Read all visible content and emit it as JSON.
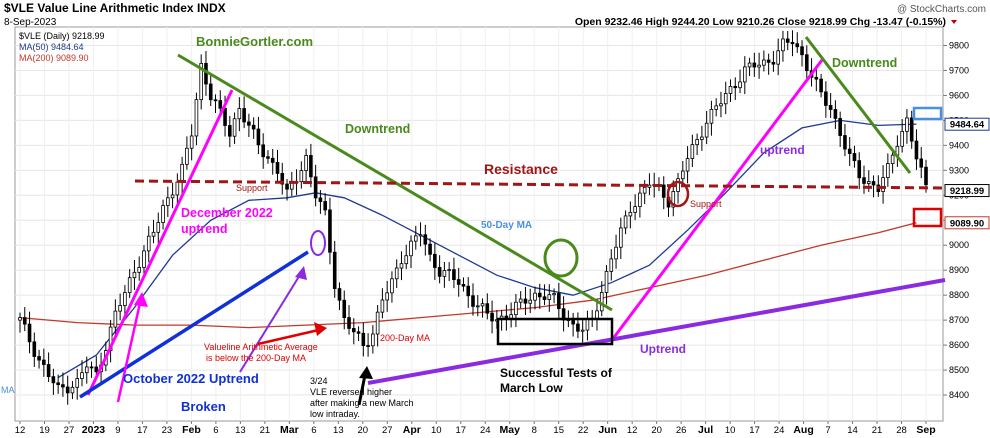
{
  "header": {
    "symbol_line": "$VLE Value Line Arithmetic Index INDX",
    "date_line": "8-Sep-2023",
    "brand": "@ StockCharts.com",
    "ohlc": "Open 9232.46  High 9244.20  Low 9210.26  Close 9218.99  Chg -13.47 (-0.15%)",
    "legend_price": "$VLE (Daily) 9218.99",
    "legend_ma50": "MA(50) 9484.64",
    "legend_ma200": "MA(200) 9089.90"
  },
  "colors": {
    "candle": "#000000",
    "ma50": "#1f3a93",
    "ma200": "#c0392b",
    "downtrend": "#4a8a1c",
    "uptrend_magenta": "#ff00ff",
    "uptrend_purple": "#8a2be2",
    "blue_line": "#1030d8",
    "resistance": "#a01515",
    "red_note": "#e00000",
    "purple_note": "#8a2be2"
  },
  "annotations": {
    "bonniegortler": "BonnieGortler.com",
    "downtrend_mid": "Downtrend",
    "downtrend_right": "Downtrend",
    "resistance": "Resistance",
    "support_left": "Support",
    "support_right": "Support",
    "dec_uptrend_1": "December 2022",
    "dec_uptrend_2": "uptrend",
    "ma50_label": "50-Day MA",
    "uptrend_mid": "uptrend",
    "vle_below_1": "Valueline Arithmetic Average",
    "vle_below_2": "is below the 200-Day MA",
    "ma200_label": "200-Day MA",
    "oct_uptrend": "October 2022 Uptrend",
    "broken": "Broken",
    "note_date": "3/24",
    "note_1": "VLE reversed higher",
    "note_2": "after making a new March",
    "note_3": "low intraday.",
    "successful_1": "Successful Tests of",
    "successful_2": "March Low",
    "uptrend_bottom": "Uptrend",
    "edge_ma": "MA"
  },
  "chart_data": {
    "type": "candlestick",
    "title": "$VLE Value Line Arithmetic Index INDX",
    "ylim": [
      8300,
      9850
    ],
    "y_ticks": [
      8400,
      8500,
      8600,
      8700,
      8800,
      8900,
      9000,
      9100,
      9200,
      9300,
      9400,
      9500,
      9600,
      9700,
      9800
    ],
    "y_tick_labels": [
      "8400",
      "8500",
      "8600",
      "8700",
      "8800",
      "8900",
      "9000",
      "9100",
      "9200",
      "9300",
      "9400",
      "9500",
      "9600",
      "9700",
      "9800"
    ],
    "price_flags": {
      "close": "9218.99",
      "ma50": "9484.64",
      "ma200": "9089.90"
    },
    "x_tick_labels": [
      "12",
      "19",
      "27",
      "2023",
      "9",
      "17",
      "23",
      "Feb",
      "6",
      "13",
      "21",
      "Mar",
      "6",
      "13",
      "20",
      "27",
      "Apr",
      "10",
      "17",
      "24",
      "May",
      "8",
      "15",
      "22",
      "Jun",
      "12",
      "20",
      "26",
      "Jul",
      "10",
      "17",
      "24",
      "Aug",
      "7",
      "14",
      "21",
      "28",
      "Sep"
    ],
    "x_tick_bold": [
      false,
      false,
      false,
      true,
      false,
      false,
      false,
      true,
      false,
      false,
      false,
      true,
      false,
      false,
      false,
      false,
      true,
      false,
      false,
      false,
      true,
      false,
      false,
      false,
      true,
      false,
      false,
      false,
      true,
      false,
      false,
      false,
      true,
      false,
      false,
      false,
      false,
      true
    ],
    "price_path": [
      [
        0,
        8700
      ],
      [
        2,
        8540
      ],
      [
        4,
        8420
      ],
      [
        6,
        8450
      ],
      [
        7,
        8520
      ],
      [
        8,
        8480
      ],
      [
        9,
        8600
      ],
      [
        10,
        8720
      ],
      [
        12,
        8900
      ],
      [
        14,
        9050
      ],
      [
        15,
        9150
      ],
      [
        17,
        9300
      ],
      [
        18,
        9450
      ],
      [
        19,
        9720
      ],
      [
        20,
        9600
      ],
      [
        22,
        9450
      ],
      [
        23,
        9550
      ],
      [
        25,
        9400
      ],
      [
        27,
        9300
      ],
      [
        28,
        9200
      ],
      [
        30,
        9350
      ],
      [
        31,
        9200
      ],
      [
        32,
        9120
      ],
      [
        33,
        8850
      ],
      [
        34,
        8700
      ],
      [
        35,
        8650
      ],
      [
        36,
        8600
      ],
      [
        37,
        8650
      ],
      [
        38,
        8780
      ],
      [
        39,
        8850
      ],
      [
        40,
        8950
      ],
      [
        41,
        9000
      ],
      [
        42,
        9050
      ],
      [
        43,
        8950
      ],
      [
        44,
        8900
      ],
      [
        45,
        8880
      ],
      [
        46,
        8850
      ],
      [
        47,
        8800
      ],
      [
        48,
        8760
      ],
      [
        49,
        8720
      ],
      [
        50,
        8700
      ],
      [
        51,
        8720
      ],
      [
        52,
        8750
      ],
      [
        53,
        8780
      ],
      [
        54,
        8800
      ],
      [
        55,
        8800
      ],
      [
        56,
        8780
      ],
      [
        57,
        8720
      ],
      [
        58,
        8680
      ],
      [
        59,
        8660
      ],
      [
        60,
        8700
      ],
      [
        61,
        8820
      ],
      [
        62,
        8950
      ],
      [
        63,
        9050
      ],
      [
        64,
        9150
      ],
      [
        65,
        9200
      ],
      [
        66,
        9250
      ],
      [
        67,
        9220
      ],
      [
        68,
        9180
      ],
      [
        69,
        9250
      ],
      [
        70,
        9350
      ],
      [
        71,
        9420
      ],
      [
        72,
        9500
      ],
      [
        73,
        9550
      ],
      [
        74,
        9600
      ],
      [
        75,
        9650
      ],
      [
        76,
        9700
      ],
      [
        77,
        9720
      ],
      [
        78,
        9730
      ],
      [
        79,
        9750
      ],
      [
        80,
        9800
      ],
      [
        81,
        9820
      ],
      [
        82,
        9760
      ],
      [
        83,
        9680
      ],
      [
        84,
        9600
      ],
      [
        85,
        9550
      ],
      [
        86,
        9450
      ],
      [
        87,
        9350
      ],
      [
        88,
        9280
      ],
      [
        89,
        9250
      ],
      [
        90,
        9230
      ],
      [
        91,
        9300
      ],
      [
        92,
        9420
      ],
      [
        93,
        9500
      ],
      [
        94,
        9350
      ],
      [
        95,
        9230
      ]
    ],
    "ma50_path": [
      [
        4,
        8470
      ],
      [
        8,
        8560
      ],
      [
        12,
        8750
      ],
      [
        16,
        8960
      ],
      [
        20,
        9100
      ],
      [
        24,
        9180
      ],
      [
        28,
        9190
      ],
      [
        31,
        9210
      ],
      [
        34,
        9190
      ],
      [
        38,
        9120
      ],
      [
        42,
        9040
      ],
      [
        46,
        8960
      ],
      [
        50,
        8880
      ],
      [
        54,
        8830
      ],
      [
        58,
        8800
      ],
      [
        62,
        8850
      ],
      [
        66,
        8920
      ],
      [
        70,
        9060
      ],
      [
        74,
        9210
      ],
      [
        78,
        9370
      ],
      [
        82,
        9470
      ],
      [
        86,
        9500
      ],
      [
        90,
        9480
      ],
      [
        94,
        9485
      ]
    ],
    "ma200_path": [
      [
        0,
        8710
      ],
      [
        6,
        8690
      ],
      [
        12,
        8680
      ],
      [
        18,
        8680
      ],
      [
        24,
        8670
      ],
      [
        30,
        8680
      ],
      [
        36,
        8690
      ],
      [
        42,
        8710
      ],
      [
        48,
        8730
      ],
      [
        54,
        8750
      ],
      [
        60,
        8780
      ],
      [
        66,
        8830
      ],
      [
        72,
        8880
      ],
      [
        78,
        8940
      ],
      [
        84,
        9000
      ],
      [
        90,
        9050
      ],
      [
        94,
        9090
      ]
    ]
  }
}
